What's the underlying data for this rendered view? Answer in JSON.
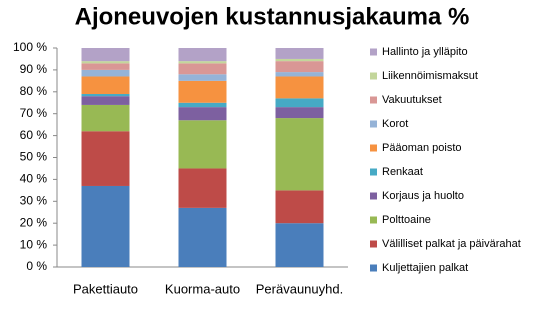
{
  "chart_data": {
    "type": "stacked-bar",
    "title": "Ajoneuvojen kustannusjakauma %",
    "categories": [
      "Pakettiauto",
      "Kuorma-auto",
      "Perävaunuyhd."
    ],
    "ylim": [
      0,
      100
    ],
    "yticks": [
      {
        "value": 0,
        "label": "0 %"
      },
      {
        "value": 10,
        "label": "10 %"
      },
      {
        "value": 20,
        "label": "20 %"
      },
      {
        "value": 30,
        "label": "30 %"
      },
      {
        "value": 40,
        "label": "40 %"
      },
      {
        "value": 50,
        "label": "50 %"
      },
      {
        "value": 60,
        "label": "60 %"
      },
      {
        "value": 70,
        "label": "70 %"
      },
      {
        "value": 80,
        "label": "80 %"
      },
      {
        "value": 90,
        "label": "90 %"
      },
      {
        "value": 100,
        "label": "100 %"
      }
    ],
    "grid": false,
    "legend": "right",
    "series": [
      {
        "name": "Kuljettajien palkat",
        "color": "#4a7ebb",
        "values": [
          37,
          27,
          20
        ]
      },
      {
        "name": "Välilliset palkat ja päivärahat",
        "color": "#be4b48",
        "values": [
          25,
          18,
          15
        ]
      },
      {
        "name": "Polttoaine",
        "color": "#98b954",
        "values": [
          12,
          22,
          33
        ]
      },
      {
        "name": "Korjaus ja huolto",
        "color": "#7d60a0",
        "values": [
          4,
          6,
          5
        ]
      },
      {
        "name": "Renkaat",
        "color": "#46aac5",
        "values": [
          1,
          2,
          4
        ]
      },
      {
        "name": "Pääoman poisto",
        "color": "#f69240",
        "values": [
          8,
          10,
          10
        ]
      },
      {
        "name": "Korot",
        "color": "#95b3d7",
        "values": [
          3,
          3,
          2
        ]
      },
      {
        "name": "Vakuutukset",
        "color": "#d99795",
        "values": [
          3,
          5,
          5
        ]
      },
      {
        "name": "Liikennöimismaksut",
        "color": "#c3d69b",
        "values": [
          1,
          1,
          1
        ]
      },
      {
        "name": "Hallinto ja ylläpito",
        "color": "#b3a2c7",
        "values": [
          6,
          6,
          5
        ]
      }
    ]
  }
}
